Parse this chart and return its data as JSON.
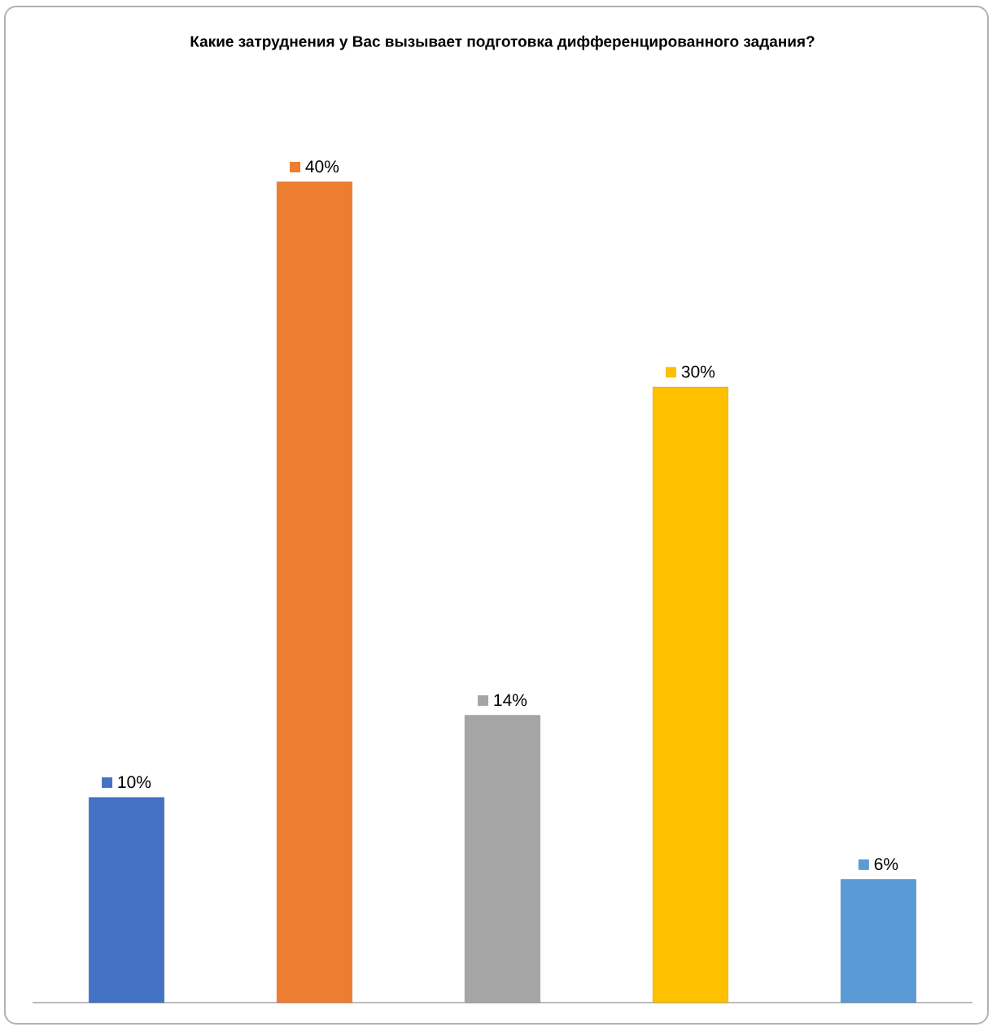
{
  "chart_data": {
    "type": "bar",
    "title": "Какие затруднения у Вас вызывает подготовка дифференцированного задания?",
    "categories": [
      null,
      null,
      null,
      null,
      null
    ],
    "values": [
      10,
      40,
      14,
      30,
      6
    ],
    "value_labels": [
      "10%",
      "40%",
      "14%",
      "30%",
      "6%"
    ],
    "colors": [
      "#4472c4",
      "#ed7d31",
      "#a5a5a5",
      "#ffc000",
      "#5b9bd5"
    ]
  }
}
